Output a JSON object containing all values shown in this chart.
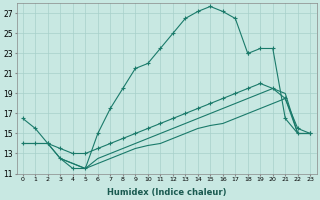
{
  "xlabel": "Humidex (Indice chaleur)",
  "bg_color": "#c8e8e2",
  "grid_color": "#a8d0ca",
  "line_color": "#1a7a6a",
  "xlim": [
    -0.5,
    23.5
  ],
  "ylim": [
    11,
    28
  ],
  "yticks": [
    11,
    13,
    15,
    17,
    19,
    21,
    23,
    25,
    27
  ],
  "line1_x": [
    0,
    1,
    2,
    3,
    4,
    5,
    6,
    7,
    8,
    9,
    10,
    11,
    12,
    13,
    14,
    15,
    16,
    17,
    18
  ],
  "line1_y": [
    16.5,
    15.5,
    14.0,
    12.5,
    11.5,
    11.5,
    15.0,
    17.5,
    19.5,
    21.5,
    22.0,
    23.5,
    25.0,
    26.5,
    27.2,
    27.7,
    27.2,
    26.5,
    23.0
  ],
  "line1b_x": [
    18,
    19,
    20,
    21,
    22,
    23
  ],
  "line1b_y": [
    23.0,
    23.5,
    23.5,
    16.5,
    15.0,
    15.0
  ],
  "line2_x": [
    0,
    1,
    2,
    3,
    4,
    5,
    6,
    7,
    8,
    9,
    10,
    11,
    12,
    13,
    14,
    15,
    16,
    17,
    18,
    19,
    20,
    21,
    22,
    23
  ],
  "line2_y": [
    14.0,
    14.0,
    14.0,
    13.5,
    13.0,
    13.0,
    13.5,
    14.0,
    14.5,
    15.0,
    15.5,
    16.0,
    16.5,
    17.0,
    17.5,
    18.0,
    18.5,
    19.0,
    19.5,
    20.0,
    19.5,
    18.5,
    15.5,
    15.0
  ],
  "line3_x": [
    0,
    1,
    2,
    3,
    4,
    5,
    6,
    7,
    8,
    9,
    10,
    11,
    12,
    13,
    14,
    15,
    16,
    17,
    18,
    19,
    20,
    21,
    22,
    23
  ],
  "line3_y": [
    14.0,
    14.0,
    14.0,
    12.5,
    12.0,
    11.5,
    12.5,
    13.0,
    13.5,
    14.0,
    14.5,
    15.0,
    15.5,
    16.0,
    16.5,
    17.0,
    17.5,
    18.0,
    18.5,
    19.0,
    19.5,
    19.0,
    15.0,
    15.0
  ],
  "line4_x": [
    3,
    4,
    5,
    6,
    7,
    8,
    9,
    10,
    11,
    12,
    13,
    14,
    15,
    16,
    17,
    18,
    19,
    20,
    21,
    22,
    23
  ],
  "line4_y": [
    12.5,
    12.0,
    11.5,
    12.0,
    12.5,
    13.0,
    13.5,
    13.8,
    14.0,
    14.5,
    15.0,
    15.5,
    15.8,
    16.0,
    16.5,
    17.0,
    17.5,
    18.0,
    18.5,
    15.0,
    15.0
  ]
}
